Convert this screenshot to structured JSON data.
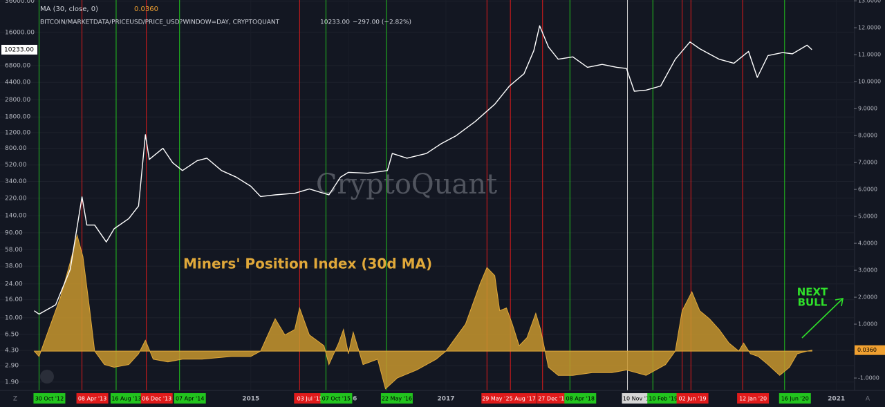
{
  "chart_data": {
    "type": "line",
    "title": "Miners' Position Index (30d MA)",
    "annotation_lines": [
      "NEXT",
      "BULL"
    ],
    "watermark": "CryptoQuant",
    "legend": {
      "indicator": "MA (30, close, 0)",
      "indicator_value": "0.0360",
      "symbol": "BITCOIN/MARKETDATA/PRICEUSD/PRICE_USD?WINDOW=DAY, CRYPTOQUANT",
      "last": "10233.00",
      "change": "−297.00 (−2.82%)"
    },
    "corner_left": "Z",
    "corner_right": "A",
    "log_scale": true,
    "grid": true,
    "xlim": [
      2012.43,
      2021.18
    ],
    "xticks": [
      2015,
      2016,
      2017,
      2021
    ],
    "ylim": [
      1.53,
      37000
    ],
    "yticks": [
      {
        "value": 36000,
        "label": "36000.00"
      },
      {
        "value": 16000,
        "label": "16000.00"
      },
      {
        "value": 6800,
        "label": "6800.00"
      },
      {
        "value": 4400,
        "label": "4400.00"
      },
      {
        "value": 2800,
        "label": "2800.00"
      },
      {
        "value": 1800,
        "label": "1800.00"
      },
      {
        "value": 1200,
        "label": "1200.00"
      },
      {
        "value": 800,
        "label": "800.00"
      },
      {
        "value": 520,
        "label": "520.00"
      },
      {
        "value": 340,
        "label": "340.00"
      },
      {
        "value": 220,
        "label": "220.00"
      },
      {
        "value": 140,
        "label": "140.00"
      },
      {
        "value": 90,
        "label": "90.00"
      },
      {
        "value": 58,
        "label": "58.00"
      },
      {
        "value": 38,
        "label": "38.00"
      },
      {
        "value": 24,
        "label": "24.00"
      },
      {
        "value": 16,
        "label": "16.00"
      },
      {
        "value": 10,
        "label": "10.00"
      },
      {
        "value": 6.5,
        "label": "6.50"
      },
      {
        "value": 4.3,
        "label": "4.30"
      },
      {
        "value": 2.9,
        "label": "2.90"
      },
      {
        "value": 1.9,
        "label": "1.90"
      }
    ],
    "y2lim": [
      -1.46,
      13.03
    ],
    "y2ticks": [
      {
        "value": 13,
        "label": "13.0000"
      },
      {
        "value": 12,
        "label": "12.0000"
      },
      {
        "value": 11,
        "label": "11.0000"
      },
      {
        "value": 10,
        "label": "10.0000"
      },
      {
        "value": 9,
        "label": "9.0000"
      },
      {
        "value": 8,
        "label": "8.0000"
      },
      {
        "value": 7,
        "label": "7.0000"
      },
      {
        "value": 6,
        "label": "6.0000"
      },
      {
        "value": 5,
        "label": "5.0000"
      },
      {
        "value": 4,
        "label": "4.0000"
      },
      {
        "value": 3,
        "label": "3.0000"
      },
      {
        "value": 2,
        "label": "2.0000"
      },
      {
        "value": 1,
        "label": "1.0000"
      },
      {
        "value": -1,
        "label": "-1.0000"
      }
    ],
    "price": {
      "color": "#ffffff",
      "x": [
        2012.78,
        2012.83,
        2013.0,
        2013.15,
        2013.27,
        2013.32,
        2013.4,
        2013.52,
        2013.6,
        2013.75,
        2013.85,
        2013.92,
        2013.96,
        2014.1,
        2014.2,
        2014.3,
        2014.45,
        2014.55,
        2014.7,
        2014.85,
        2015.0,
        2015.1,
        2015.25,
        2015.45,
        2015.6,
        2015.8,
        2015.92,
        2016.0,
        2016.2,
        2016.4,
        2016.45,
        2016.6,
        2016.8,
        2016.95,
        2017.1,
        2017.3,
        2017.5,
        2017.65,
        2017.8,
        2017.9,
        2017.96,
        2018.05,
        2018.15,
        2018.3,
        2018.45,
        2018.6,
        2018.75,
        2018.85,
        2018.93,
        2019.05,
        2019.2,
        2019.35,
        2019.5,
        2019.6,
        2019.8,
        2019.95,
        2020.1,
        2020.19,
        2020.3,
        2020.45,
        2020.55,
        2020.7,
        2020.75
      ],
      "values": [
        12,
        11,
        14,
        35,
        228,
        110,
        110,
        71,
        100,
        130,
        180,
        1137,
        600,
        800,
        550,
        450,
        580,
        620,
        450,
        380,
        300,
        230,
        240,
        250,
        280,
        240,
        380,
        430,
        420,
        450,
        700,
        620,
        700,
        900,
        1100,
        1600,
        2500,
        4000,
        5500,
        10000,
        19000,
        11000,
        8000,
        8500,
        6500,
        7000,
        6500,
        6300,
        3500,
        3600,
        4000,
        8000,
        12500,
        10500,
        8000,
        7200,
        9800,
        5000,
        8800,
        9500,
        9200,
        11500,
        10233
      ]
    },
    "mpi": {
      "color": "#c8962e",
      "axis": "y2",
      "x": [
        2012.78,
        2012.83,
        2012.95,
        2013.05,
        2013.15,
        2013.22,
        2013.28,
        2013.35,
        2013.4,
        2013.5,
        2013.6,
        2013.75,
        2013.85,
        2013.92,
        2014.0,
        2014.15,
        2014.3,
        2014.5,
        2014.8,
        2015.0,
        2015.1,
        2015.25,
        2015.35,
        2015.45,
        2015.5,
        2015.6,
        2015.75,
        2015.8,
        2015.9,
        2015.95,
        2016.0,
        2016.05,
        2016.15,
        2016.3,
        2016.38,
        2016.5,
        2016.7,
        2016.9,
        2017.0,
        2017.1,
        2017.2,
        2017.35,
        2017.42,
        2017.5,
        2017.55,
        2017.62,
        2017.68,
        2017.75,
        2017.83,
        2017.92,
        2017.97,
        2018.05,
        2018.15,
        2018.3,
        2018.5,
        2018.7,
        2018.85,
        2018.95,
        2019.05,
        2019.25,
        2019.35,
        2019.42,
        2019.52,
        2019.6,
        2019.7,
        2019.8,
        2019.9,
        2020.0,
        2020.05,
        2020.12,
        2020.2,
        2020.3,
        2020.42,
        2020.52,
        2020.6,
        2020.7,
        2020.75
      ],
      "values": [
        0,
        -0.2,
        1.0,
        2.0,
        3.3,
        4.3,
        3.5,
        1.5,
        0,
        -0.5,
        -0.6,
        -0.5,
        -0.1,
        0.4,
        -0.3,
        -0.4,
        -0.3,
        -0.3,
        -0.2,
        -0.2,
        0.0,
        1.2,
        0.6,
        0.8,
        1.6,
        0.6,
        0.2,
        -0.5,
        0.3,
        0.8,
        -0.1,
        0.7,
        -0.5,
        -0.3,
        -1.4,
        -1.0,
        -0.7,
        -0.3,
        0,
        0.5,
        1.0,
        2.5,
        3.1,
        2.8,
        1.5,
        1.6,
        1.0,
        0.2,
        0.5,
        1.4,
        0.8,
        -0.6,
        -0.9,
        -0.9,
        -0.8,
        -0.8,
        -0.7,
        -0.8,
        -0.9,
        -0.5,
        0,
        1.5,
        2.2,
        1.5,
        1.2,
        0.8,
        0.3,
        0,
        0.3,
        -0.1,
        -0.2,
        -0.5,
        -0.9,
        -0.6,
        -0.1,
        0.0,
        0.036
      ]
    },
    "events": [
      {
        "label": "30 Oct '12",
        "x": 2012.83,
        "color": "#22c41e"
      },
      {
        "label": "08 Apr '13",
        "x": 2013.27,
        "color": "#e01b1b"
      },
      {
        "label": "16 Aug '13",
        "x": 2013.62,
        "color": "#22c41e"
      },
      {
        "label": "06 Dec '13",
        "x": 2013.93,
        "color": "#e01b1b"
      },
      {
        "label": "07 Apr '14",
        "x": 2014.27,
        "color": "#22c41e"
      },
      {
        "label": "03 Jul '15",
        "x": 2015.5,
        "color": "#e01b1b"
      },
      {
        "label": "07 Oct '15",
        "x": 2015.77,
        "color": "#22c41e"
      },
      {
        "label": "22 May '16",
        "x": 2016.39,
        "color": "#22c41e"
      },
      {
        "label": "29 May '17",
        "x": 2017.42,
        "color": "#e01b1b"
      },
      {
        "label": "25 Aug '17",
        "x": 2017.66,
        "color": "#e01b1b"
      },
      {
        "label": "27 Dec '17",
        "x": 2017.99,
        "color": "#e01b1b"
      },
      {
        "label": "08 Apr '18",
        "x": 2018.27,
        "color": "#22c41e"
      },
      {
        "label": "10 Nov '18",
        "x": 2018.86,
        "color": "#d6d6d6"
      },
      {
        "label": "10 Feb '19",
        "x": 2019.12,
        "color": "#22c41e"
      },
      {
        "label": "02 Jun '19",
        "x": 2019.42,
        "color": "#e01b1b"
      },
      {
        "label": null,
        "x": 2019.51,
        "color": "#e01b1b"
      },
      {
        "label": "12 Jan '20",
        "x": 2020.04,
        "color": "#e01b1b"
      },
      {
        "label": "16 Jun '20",
        "x": 2020.47,
        "color": "#22c41e"
      }
    ]
  }
}
